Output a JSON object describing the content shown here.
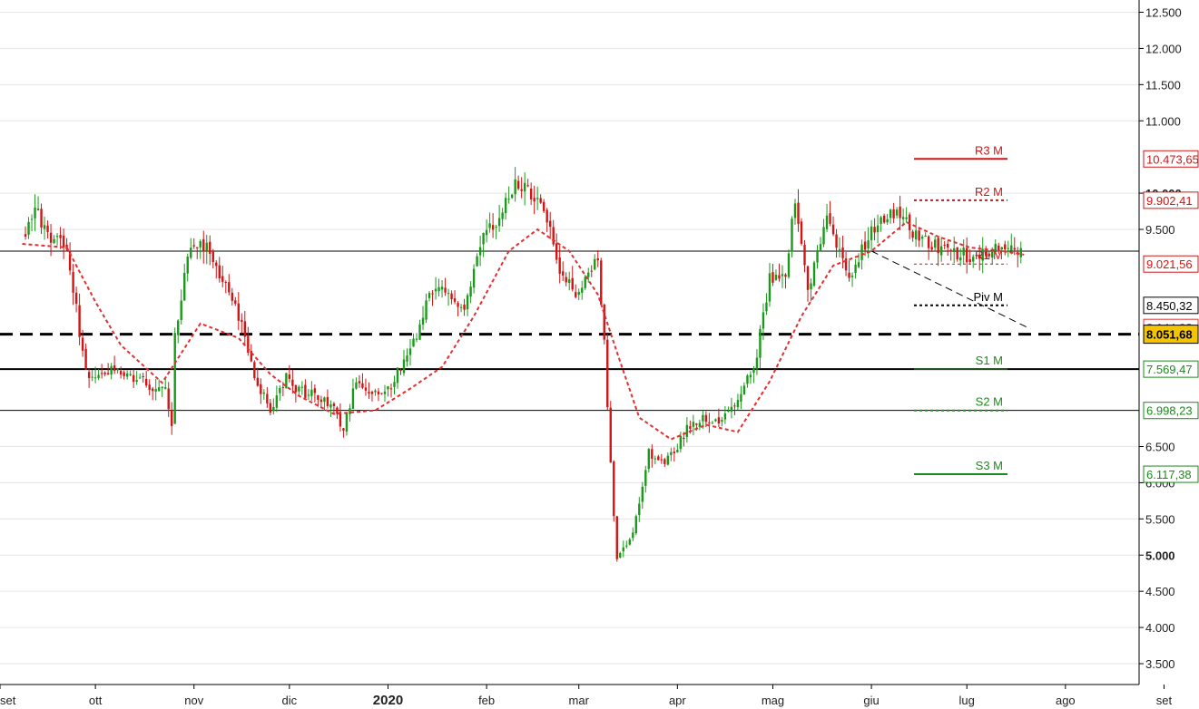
{
  "chart_data": {
    "type": "candlestick",
    "title": "",
    "xlabel": "",
    "ylabel": "",
    "x_range": [
      "2019-09-01",
      "2020-09-12"
    ],
    "ylim": [
      3250,
      12700
    ],
    "grid": "horizontal",
    "y_ticks": [
      {
        "value": 12500,
        "label": "12.500",
        "bold": false
      },
      {
        "value": 12000,
        "label": "12.000",
        "bold": false
      },
      {
        "value": 11500,
        "label": "11.500",
        "bold": false
      },
      {
        "value": 11000,
        "label": "11.000",
        "bold": false
      },
      {
        "value": 10000,
        "label": "10.000",
        "bold": true
      },
      {
        "value": 9500,
        "label": "9.500",
        "bold": false
      },
      {
        "value": 6500,
        "label": "6.500",
        "bold": false
      },
      {
        "value": 6000,
        "label": "6.000",
        "bold": false
      },
      {
        "value": 5500,
        "label": "5.500",
        "bold": false
      },
      {
        "value": 5000,
        "label": "5.000",
        "bold": true
      },
      {
        "value": 4500,
        "label": "4.500",
        "bold": false
      },
      {
        "value": 4000,
        "label": "4.000",
        "bold": false
      },
      {
        "value": 3500,
        "label": "3.500",
        "bold": false
      }
    ],
    "x_ticks": [
      {
        "date": "2019-09-01",
        "label": "set",
        "bold": false
      },
      {
        "date": "2019-10-01",
        "label": "ott",
        "bold": false
      },
      {
        "date": "2019-11-01",
        "label": "nov",
        "bold": false
      },
      {
        "date": "2019-12-01",
        "label": "dic",
        "bold": false
      },
      {
        "date": "2020-01-01",
        "label": "2020",
        "bold": true
      },
      {
        "date": "2020-02-01",
        "label": "feb",
        "bold": false
      },
      {
        "date": "2020-03-01",
        "label": "mar",
        "bold": false
      },
      {
        "date": "2020-04-01",
        "label": "apr",
        "bold": false
      },
      {
        "date": "2020-05-01",
        "label": "mag",
        "bold": false
      },
      {
        "date": "2020-06-01",
        "label": "giu",
        "bold": false
      },
      {
        "date": "2020-07-01",
        "label": "lug",
        "bold": false
      },
      {
        "date": "2020-08-01",
        "label": "ago",
        "bold": false
      },
      {
        "date": "2020-09-01",
        "label": "set",
        "bold": false
      }
    ],
    "price_path": [
      [
        "2019-09-09",
        9400
      ],
      [
        "2019-09-12",
        9750
      ],
      [
        "2019-09-17",
        9400
      ],
      [
        "2019-09-22",
        9250
      ],
      [
        "2019-09-25",
        8400
      ],
      [
        "2019-09-28",
        7500
      ],
      [
        "2019-10-05",
        7550
      ],
      [
        "2019-10-12",
        7500
      ],
      [
        "2019-10-18",
        7350
      ],
      [
        "2019-10-23",
        7250
      ],
      [
        "2019-10-25",
        6750
      ],
      [
        "2019-10-26",
        8000
      ],
      [
        "2019-10-30",
        9200
      ],
      [
        "2019-11-05",
        9300
      ],
      [
        "2019-11-10",
        8800
      ],
      [
        "2019-11-15",
        8300
      ],
      [
        "2019-11-20",
        7500
      ],
      [
        "2019-11-25",
        7000
      ],
      [
        "2019-11-30",
        7450
      ],
      [
        "2019-12-05",
        7250
      ],
      [
        "2019-12-10",
        7200
      ],
      [
        "2019-12-15",
        7000
      ],
      [
        "2019-12-18",
        6750
      ],
      [
        "2019-12-22",
        7400
      ],
      [
        "2019-12-31",
        7200
      ],
      [
        "2020-01-05",
        7600
      ],
      [
        "2020-01-10",
        8050
      ],
      [
        "2020-01-15",
        8700
      ],
      [
        "2020-01-20",
        8600
      ],
      [
        "2020-01-25",
        8400
      ],
      [
        "2020-01-30",
        9350
      ],
      [
        "2020-02-05",
        9700
      ],
      [
        "2020-02-10",
        10100
      ],
      [
        "2020-02-15",
        10000
      ],
      [
        "2020-02-20",
        9650
      ],
      [
        "2020-02-25",
        8800
      ],
      [
        "2020-03-01",
        8600
      ],
      [
        "2020-03-07",
        9100
      ],
      [
        "2020-03-09",
        7900
      ],
      [
        "2020-03-12",
        5500
      ],
      [
        "2020-03-13",
        4900
      ],
      [
        "2020-03-18",
        5300
      ],
      [
        "2020-03-23",
        6400
      ],
      [
        "2020-03-28",
        6250
      ],
      [
        "2020-04-05",
        6800
      ],
      [
        "2020-04-10",
        6900
      ],
      [
        "2020-04-15",
        6850
      ],
      [
        "2020-04-20",
        7200
      ],
      [
        "2020-04-25",
        7550
      ],
      [
        "2020-04-30",
        8800
      ],
      [
        "2020-05-05",
        8900
      ],
      [
        "2020-05-08",
        9900
      ],
      [
        "2020-05-12",
        8600
      ],
      [
        "2020-05-18",
        9700
      ],
      [
        "2020-05-25",
        8800
      ],
      [
        "2020-06-01",
        9500
      ],
      [
        "2020-06-05",
        9700
      ],
      [
        "2020-06-10",
        9750
      ],
      [
        "2020-06-15",
        9400
      ],
      [
        "2020-06-20",
        9300
      ],
      [
        "2020-06-25",
        9200
      ],
      [
        "2020-06-30",
        9150
      ],
      [
        "2020-07-05",
        9100
      ],
      [
        "2020-07-10",
        9250
      ],
      [
        "2020-07-15",
        9200
      ],
      [
        "2020-07-18",
        9150
      ]
    ],
    "moving_average": [
      [
        "2019-09-08",
        9300
      ],
      [
        "2019-09-22",
        9250
      ],
      [
        "2019-10-01",
        8500
      ],
      [
        "2019-10-09",
        7900
      ],
      [
        "2019-10-22",
        7380
      ],
      [
        "2019-11-03",
        8200
      ],
      [
        "2019-11-15",
        8000
      ],
      [
        "2019-11-25",
        7500
      ],
      [
        "2019-12-04",
        7200
      ],
      [
        "2019-12-15",
        6950
      ],
      [
        "2019-12-28",
        7000
      ],
      [
        "2020-01-08",
        7300
      ],
      [
        "2020-01-18",
        7600
      ],
      [
        "2020-01-28",
        8300
      ],
      [
        "2020-02-08",
        9200
      ],
      [
        "2020-02-17",
        9500
      ],
      [
        "2020-02-27",
        9200
      ],
      [
        "2020-03-07",
        8600
      ],
      [
        "2020-03-13",
        7800
      ],
      [
        "2020-03-20",
        6900
      ],
      [
        "2020-03-30",
        6600
      ],
      [
        "2020-04-10",
        6800
      ],
      [
        "2020-04-20",
        6700
      ],
      [
        "2020-04-30",
        7400
      ],
      [
        "2020-05-10",
        8300
      ],
      [
        "2020-05-20",
        9000
      ],
      [
        "2020-06-01",
        9200
      ],
      [
        "2020-06-12",
        9600
      ],
      [
        "2020-06-22",
        9400
      ],
      [
        "2020-07-02",
        9250
      ],
      [
        "2020-07-12",
        9200
      ],
      [
        "2020-07-19",
        9150
      ]
    ],
    "levels": [
      {
        "name": "R3 M",
        "value": 10473.65,
        "tag": "10.473,65",
        "color": "#d21414",
        "style": "solid",
        "width": 2
      },
      {
        "name": "R2 M",
        "value": 9902.41,
        "tag": "9.902,41",
        "color": "#d21414",
        "style": "dotted",
        "width": 2
      },
      {
        "name": "R1 M",
        "value": 9021.56,
        "tag": "9.021,56",
        "color": "#d21414",
        "style": "dotted",
        "width": 1
      },
      {
        "name": "Piv M",
        "value": 8450.32,
        "tag": "8.450,32",
        "color": "#000000",
        "style": "dotted",
        "width": 2
      },
      {
        "name": "S1 M",
        "value": 7569.47,
        "tag": "7.569,47",
        "color": "#1a8a1a",
        "style": "solid",
        "width": 1
      },
      {
        "name": "S2 M",
        "value": 6998.23,
        "tag": "6.998,23",
        "color": "#1a8a1a",
        "style": "dotted",
        "width": 2
      },
      {
        "name": "S3 M",
        "value": 6117.38,
        "tag": "6.117,38",
        "color": "#1a8a1a",
        "style": "solid",
        "width": 2
      }
    ],
    "horizontal_lines": [
      {
        "value": 9200,
        "style": "solid",
        "width": 1,
        "color": "#000000"
      },
      {
        "value": 8051.68,
        "style": "dashed",
        "width": 3,
        "color": "#000000"
      },
      {
        "value": 7569.47,
        "style": "solid",
        "width": 2,
        "color": "#000000"
      },
      {
        "value": 7000,
        "style": "solid",
        "width": 1,
        "color": "#000000"
      }
    ],
    "trendline": {
      "from": [
        "2020-06-01",
        9200
      ],
      "to": [
        "2020-07-21",
        8125
      ],
      "style": "dashed",
      "color": "#000000"
    },
    "current_price": {
      "value": 8051.68,
      "tag": "8.051,68"
    },
    "moving_average_last": {
      "value": 8144.92,
      "tag": "8.144,92"
    },
    "colors": {
      "up": "#1a9a1a",
      "down": "#d21414",
      "ma": "#e23030",
      "grid": "#e6e6e6",
      "current_tag": "#f5c400"
    }
  }
}
